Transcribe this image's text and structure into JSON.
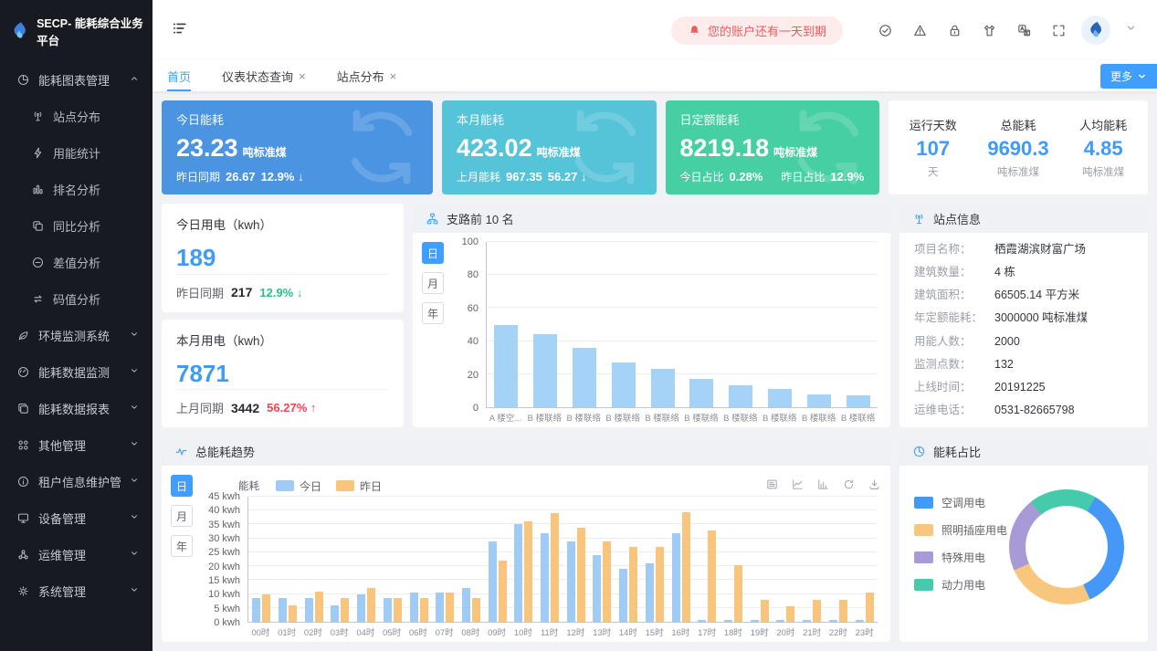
{
  "app": {
    "title": "SECP- 能耗综合业务平台"
  },
  "topbar": {
    "notice": "您的账户还有一天到期",
    "icons": [
      {
        "id": "theme-check"
      },
      {
        "id": "warning"
      },
      {
        "id": "lock"
      },
      {
        "id": "skin"
      },
      {
        "id": "translate"
      },
      {
        "id": "fullscreen"
      }
    ]
  },
  "tabs": {
    "more_label": "更多",
    "items": [
      {
        "id": "home",
        "label": "首页",
        "active": true,
        "closable": false
      },
      {
        "id": "meter-status-query",
        "label": "仪表状态查询",
        "active": false,
        "closable": true
      },
      {
        "id": "site-distribution",
        "label": "站点分布",
        "active": false,
        "closable": true
      }
    ]
  },
  "sidebar": {
    "groups": [
      {
        "id": "energy-chart-mgmt",
        "icon": "pie",
        "label": "能耗图表管理",
        "expanded": true,
        "children": [
          {
            "id": "site-distribution",
            "icon": "antenna",
            "label": "站点分布"
          },
          {
            "id": "energy-usage-stats",
            "icon": "bolt",
            "label": "用能统计"
          },
          {
            "id": "ranking-analysis",
            "icon": "bars",
            "label": "排名分析"
          },
          {
            "id": "yoy-analysis",
            "icon": "copy",
            "label": "同比分析"
          },
          {
            "id": "difference-analysis",
            "icon": "minus",
            "label": "差值分析"
          },
          {
            "id": "code-value-analysis",
            "icon": "swap",
            "label": "码值分析"
          }
        ]
      },
      {
        "id": "env-monitoring-system",
        "icon": "leaf",
        "label": "环境监测系统",
        "expanded": false
      },
      {
        "id": "energy-data-monitoring",
        "icon": "gauge",
        "label": "能耗数据监测",
        "expanded": false
      },
      {
        "id": "energy-data-reports",
        "icon": "docs",
        "label": "能耗数据报表",
        "expanded": false
      },
      {
        "id": "other-mgmt",
        "icon": "grid",
        "label": "其他管理",
        "expanded": false
      },
      {
        "id": "tenant-info-mgmt",
        "icon": "info",
        "label": "租户信息维护管理",
        "expanded": false
      },
      {
        "id": "device-mgmt",
        "icon": "monitor",
        "label": "设备管理",
        "expanded": false
      },
      {
        "id": "ops-mgmt",
        "icon": "cluster",
        "label": "运维管理",
        "expanded": false
      },
      {
        "id": "system-mgmt",
        "icon": "gear",
        "label": "系统管理",
        "expanded": false
      }
    ]
  },
  "stat_cards": {
    "today": {
      "title": "今日能耗",
      "value": "23.23",
      "unit": "吨标准煤",
      "foot_label": "昨日同期",
      "foot_value": "26.67",
      "pct": "12.9%",
      "arrow": "↓",
      "color": "#4a94e2"
    },
    "month": {
      "title": "本月能耗",
      "value": "423.02",
      "unit": "吨标准煤",
      "foot_label": "上月能耗",
      "foot_value": "967.35",
      "pct": "56.27",
      "arrow": "↓",
      "color": "#55c3d8"
    },
    "quota": {
      "title": "日定额能耗",
      "value": "8219.18",
      "unit": "吨标准煤",
      "foot1_label": "今日占比",
      "foot1_value": "0.28%",
      "foot2_label": "昨日占比",
      "foot2_value": "12.9%",
      "color": "#46cfa2"
    },
    "summary": [
      {
        "label": "运行天数",
        "value": "107",
        "unit": "天"
      },
      {
        "label": "总能耗",
        "value": "9690.3",
        "unit": "吨标准煤"
      },
      {
        "label": "人均能耗",
        "value": "4.85",
        "unit": "吨标准煤"
      }
    ]
  },
  "kwh_panels": {
    "today": {
      "title": "今日用电（kwh）",
      "value": "189",
      "foot_label": "昨日同期",
      "foot_value": "217",
      "pct": "12.9%",
      "arrow": "↓",
      "trend": "down"
    },
    "month": {
      "title": "本月用电（kwh）",
      "value": "7871",
      "foot_label": "上月同期",
      "foot_value": "3442",
      "pct": "56.27%",
      "arrow": "↑",
      "trend": "up"
    }
  },
  "panels": {
    "branch": {
      "title": "支路前 10 名",
      "toggles": [
        "日",
        "月",
        "年"
      ],
      "active_toggle": "日"
    },
    "site_info": {
      "title": "站点信息",
      "rows": [
        {
          "label": "项目名称：",
          "value": "栖霞湖滨财富广场"
        },
        {
          "label": "建筑数量：",
          "value": "4 栋"
        },
        {
          "label": "建筑面积：",
          "value": "66505.14 平方米"
        },
        {
          "label": "年定额能耗：",
          "value": "3000000 吨标准煤"
        },
        {
          "label": "用能人数：",
          "value": "2000"
        },
        {
          "label": "监测点数：",
          "value": "132"
        },
        {
          "label": "上线时间：",
          "value": "20191225"
        },
        {
          "label": "运维电话：",
          "value": "0531-82665798"
        }
      ]
    },
    "trend": {
      "title": "总能耗趋势",
      "axis_name": "能耗",
      "toggles": [
        "日",
        "月",
        "年"
      ],
      "active_toggle": "日",
      "toolbox": [
        "dataview",
        "linechart",
        "barchart",
        "refresh",
        "download"
      ]
    },
    "donut": {
      "title": "能耗占比"
    }
  },
  "chart_data": [
    {
      "type": "bar",
      "title": "支路前 10 名",
      "categories": [
        "A 楼空...",
        "B 楼联络",
        "B 楼联络",
        "B 楼联络",
        "B 楼联络",
        "B 楼联络",
        "B 楼联络",
        "B 楼联络",
        "B 楼联络",
        "B 楼联络"
      ],
      "values": [
        50,
        44,
        36,
        27,
        23,
        17,
        13,
        11,
        8,
        7
      ],
      "xlabel": "",
      "ylabel": "",
      "ylim": [
        0,
        100
      ],
      "ytick_step": 20,
      "bar_color": "#a5d3f8",
      "grid": true,
      "legend_position": "none"
    },
    {
      "type": "bar",
      "title": "总能耗趋势",
      "categories": [
        "00时",
        "01时",
        "02时",
        "03时",
        "04时",
        "05时",
        "06时",
        "07时",
        "08时",
        "09时",
        "10时",
        "11时",
        "12时",
        "13时",
        "14时",
        "15时",
        "16时",
        "17时",
        "18时",
        "19时",
        "20时",
        "21时",
        "22时",
        "23时"
      ],
      "series": [
        {
          "name": "今日",
          "color": "#9fcbf4",
          "values": [
            8.5,
            8.5,
            8.5,
            6,
            10,
            8.5,
            10.5,
            10.5,
            12,
            29,
            35,
            32,
            29,
            24,
            19,
            21,
            32,
            0.8,
            0.8,
            0.8,
            0.8,
            0.8,
            0.8,
            0.8
          ]
        },
        {
          "name": "昨日",
          "color": "#f9c57d",
          "values": [
            10,
            6,
            11,
            8.5,
            12,
            8.5,
            8.5,
            10.5,
            8.5,
            22,
            36,
            39,
            34,
            29,
            27,
            27,
            39.5,
            33,
            20.5,
            8,
            5.5,
            8,
            8,
            10.5
          ]
        }
      ],
      "xlabel": "",
      "ylabel": "能耗",
      "ylim": [
        0,
        45
      ],
      "ytick_step": 5,
      "ytick_suffix": " kwh",
      "grid": true,
      "legend_position": "top"
    },
    {
      "type": "pie",
      "title": "能耗占比",
      "legend_position": "left",
      "start_angle_deg": 30,
      "segments": [
        {
          "label": "空调用电",
          "pct": 35,
          "color": "#4598f8"
        },
        {
          "label": "照明插座用电",
          "pct": 25,
          "color": "#f8c77d"
        },
        {
          "label": "特殊用电",
          "pct": 21,
          "color": "#a89ad6"
        },
        {
          "label": "动力用电",
          "pct": 19,
          "color": "#45cbab"
        }
      ]
    }
  ]
}
